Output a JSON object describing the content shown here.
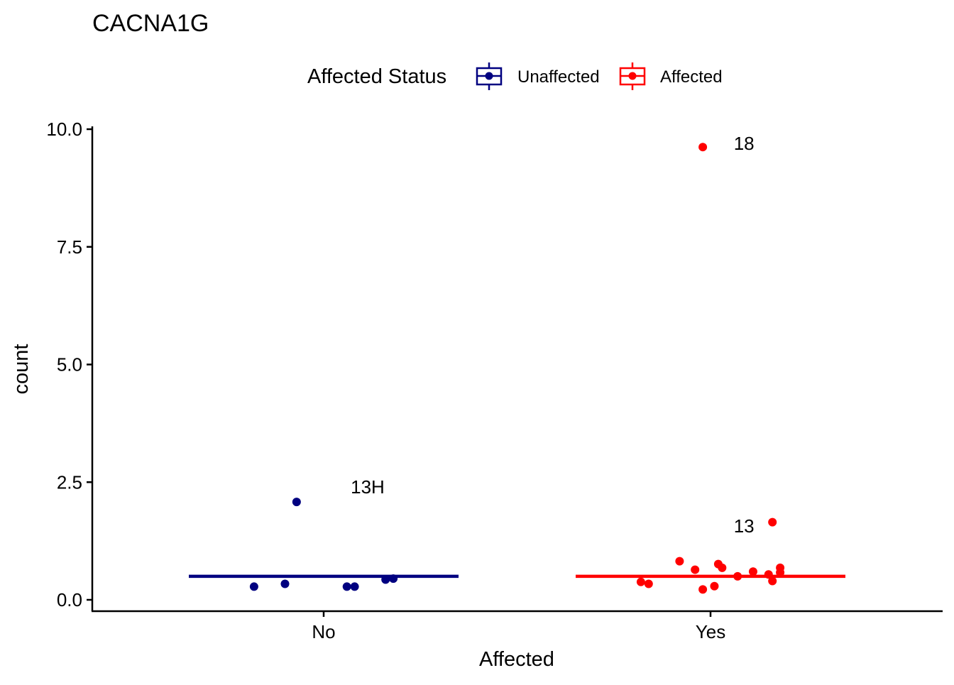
{
  "chart_data": {
    "type": "scatter",
    "title": "CACNA1G",
    "xlabel": "Affected",
    "ylabel": "count",
    "categories": [
      "No",
      "Yes"
    ],
    "ylim": [
      0,
      10
    ],
    "yticks": [
      0,
      2.5,
      5,
      7.5,
      10
    ],
    "ytick_labels": [
      "0.0",
      "2.5",
      "5.0",
      "7.5",
      "10.0"
    ],
    "grid": false,
    "legend": {
      "title": "Affected Status",
      "position": "top",
      "entries": [
        {
          "label": "Unaffected",
          "color": "#000080"
        },
        {
          "label": "Affected",
          "color": "#FF0000"
        }
      ]
    },
    "series": [
      {
        "name": "Unaffected",
        "category": "No",
        "color": "#000080",
        "median": 0.5,
        "points": [
          {
            "jitter": -0.18,
            "y": 0.28
          },
          {
            "jitter": -0.1,
            "y": 0.34
          },
          {
            "jitter": -0.07,
            "y": 2.08
          },
          {
            "jitter": 0.06,
            "y": 0.28
          },
          {
            "jitter": 0.08,
            "y": 0.28
          },
          {
            "jitter": 0.16,
            "y": 0.43
          },
          {
            "jitter": 0.18,
            "y": 0.45
          }
        ]
      },
      {
        "name": "Affected",
        "category": "Yes",
        "color": "#FF0000",
        "median": 0.5,
        "points": [
          {
            "jitter": -0.18,
            "y": 0.38
          },
          {
            "jitter": -0.16,
            "y": 0.34
          },
          {
            "jitter": -0.08,
            "y": 0.82
          },
          {
            "jitter": -0.04,
            "y": 0.64
          },
          {
            "jitter": -0.02,
            "y": 9.62
          },
          {
            "jitter": -0.02,
            "y": 0.22
          },
          {
            "jitter": 0.01,
            "y": 0.29
          },
          {
            "jitter": 0.02,
            "y": 0.76
          },
          {
            "jitter": 0.03,
            "y": 0.68
          },
          {
            "jitter": 0.07,
            "y": 0.5
          },
          {
            "jitter": 0.11,
            "y": 0.6
          },
          {
            "jitter": 0.15,
            "y": 0.54
          },
          {
            "jitter": 0.16,
            "y": 1.65
          },
          {
            "jitter": 0.16,
            "y": 0.4
          },
          {
            "jitter": 0.18,
            "y": 0.58
          },
          {
            "jitter": 0.18,
            "y": 0.68
          }
        ]
      }
    ],
    "annotations": [
      {
        "text": "13H",
        "category": "No",
        "jitter": 0.07,
        "y": 2.4
      },
      {
        "text": "18",
        "category": "Yes",
        "jitter": 0.06,
        "y": 9.7
      },
      {
        "text": "13",
        "category": "Yes",
        "jitter": 0.06,
        "y": 1.57
      }
    ]
  }
}
